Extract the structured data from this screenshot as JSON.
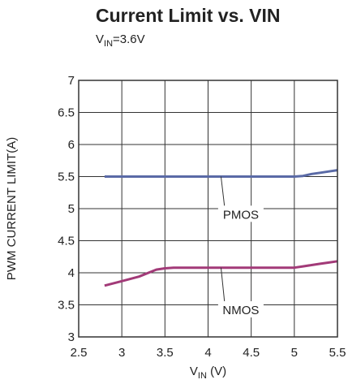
{
  "chart_data": {
    "type": "line",
    "title": "Current Limit vs. VIN",
    "subtitle": {
      "main": "V",
      "sub": "IN",
      "rest": "=3.6V"
    },
    "xlabel": {
      "main": "V",
      "sub": "IN",
      "rest": " (V)"
    },
    "ylabel": "PWM CURRENT LIMIT(A)",
    "xlim": [
      2.5,
      5.5
    ],
    "ylim": [
      3,
      7
    ],
    "xticks": [
      2.5,
      3,
      3.5,
      4,
      4.5,
      5,
      5.5
    ],
    "xtick_labels": [
      "2.5",
      "3",
      "3.5",
      "4",
      "4.5",
      "5",
      "5.5"
    ],
    "yticks": [
      3,
      3.5,
      4,
      4.5,
      5,
      5.5,
      6,
      6.5,
      7
    ],
    "ytick_labels": [
      "3",
      "3.5",
      "4",
      "4.5",
      "5",
      "5.5",
      "6",
      "6.5",
      "7"
    ],
    "grid": true,
    "series": [
      {
        "name": "PMOS",
        "color": "#5a6aa6",
        "x": [
          2.8,
          3.0,
          3.5,
          4.0,
          4.5,
          5.0,
          5.1,
          5.2,
          5.3,
          5.4,
          5.5
        ],
        "y": [
          5.5,
          5.5,
          5.5,
          5.5,
          5.5,
          5.5,
          5.51,
          5.54,
          5.56,
          5.58,
          5.6
        ]
      },
      {
        "name": "NMOS",
        "color": "#a23a78",
        "x": [
          2.8,
          3.0,
          3.2,
          3.4,
          3.5,
          3.6,
          4.0,
          4.5,
          5.0,
          5.1,
          5.2,
          5.3,
          5.4,
          5.5
        ],
        "y": [
          3.8,
          3.87,
          3.94,
          4.05,
          4.07,
          4.08,
          4.08,
          4.08,
          4.08,
          4.1,
          4.12,
          4.14,
          4.16,
          4.18
        ]
      }
    ],
    "annotations": [
      {
        "text": "PMOS",
        "series": "PMOS",
        "x": 4.38,
        "y": 4.92,
        "point_x": 4.15,
        "point_y": 5.5
      },
      {
        "text": "NMOS",
        "series": "NMOS",
        "x": 4.38,
        "y": 3.43,
        "point_x": 4.15,
        "point_y": 4.08
      }
    ]
  }
}
